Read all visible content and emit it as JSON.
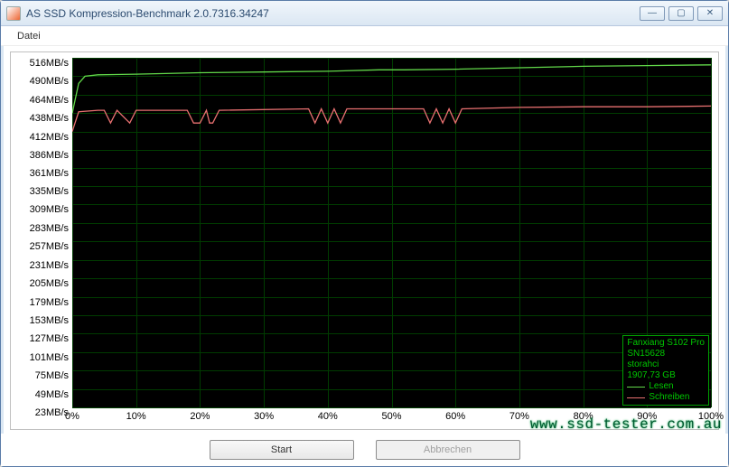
{
  "window": {
    "title": "AS SSD Kompression-Benchmark 2.0.7316.34247"
  },
  "menu": {
    "datei": "Datei"
  },
  "buttons": {
    "start": "Start",
    "abort": "Abbrechen"
  },
  "watermark": "www.ssd-tester.com.au",
  "device": {
    "model": "Fanxiang S102 Pro",
    "serial": "SN15628",
    "driver": "storahci",
    "capacity": "1907,73 GB"
  },
  "legend": {
    "read": "Lesen",
    "write": "Schreiben",
    "read_color": "#62d84a",
    "write_color": "#e87070"
  },
  "chart": {
    "background_color": "#000000",
    "grid_color": "#003c00",
    "axis_font_color": "#000000",
    "y_min": 23,
    "y_max": 516,
    "y_ticks": [
      516,
      490,
      464,
      438,
      412,
      386,
      361,
      335,
      309,
      283,
      257,
      231,
      205,
      179,
      153,
      127,
      101,
      75,
      49,
      23
    ],
    "y_unit": "MB/s",
    "x_min": 0,
    "x_max": 100,
    "x_ticks": [
      0,
      10,
      20,
      30,
      40,
      50,
      60,
      70,
      80,
      90,
      100
    ],
    "x_unit": "%",
    "read_series": {
      "color": "#62d84a",
      "points": [
        [
          0,
          438
        ],
        [
          1,
          480
        ],
        [
          2,
          490
        ],
        [
          4,
          492
        ],
        [
          10,
          493
        ],
        [
          20,
          495
        ],
        [
          30,
          496
        ],
        [
          40,
          497
        ],
        [
          48,
          499
        ],
        [
          52,
          499
        ],
        [
          60,
          500
        ],
        [
          70,
          502
        ],
        [
          80,
          504
        ],
        [
          90,
          505
        ],
        [
          100,
          506
        ]
      ]
    },
    "write_series": {
      "color": "#e87070",
      "points": [
        [
          0,
          412
        ],
        [
          1,
          440
        ],
        [
          4,
          442
        ],
        [
          5,
          442
        ],
        [
          6,
          424
        ],
        [
          7,
          442
        ],
        [
          9,
          424
        ],
        [
          10,
          442
        ],
        [
          18,
          442
        ],
        [
          19,
          424
        ],
        [
          20,
          424
        ],
        [
          21,
          442
        ],
        [
          21.5,
          424
        ],
        [
          22,
          424
        ],
        [
          23,
          442
        ],
        [
          37,
          444
        ],
        [
          38,
          424
        ],
        [
          39,
          444
        ],
        [
          40,
          424
        ],
        [
          41,
          444
        ],
        [
          42,
          424
        ],
        [
          43,
          444
        ],
        [
          55,
          444
        ],
        [
          56,
          424
        ],
        [
          57,
          444
        ],
        [
          58,
          424
        ],
        [
          59,
          444
        ],
        [
          60,
          424
        ],
        [
          61,
          444
        ],
        [
          70,
          446
        ],
        [
          80,
          447
        ],
        [
          90,
          447
        ],
        [
          100,
          448
        ]
      ]
    }
  }
}
